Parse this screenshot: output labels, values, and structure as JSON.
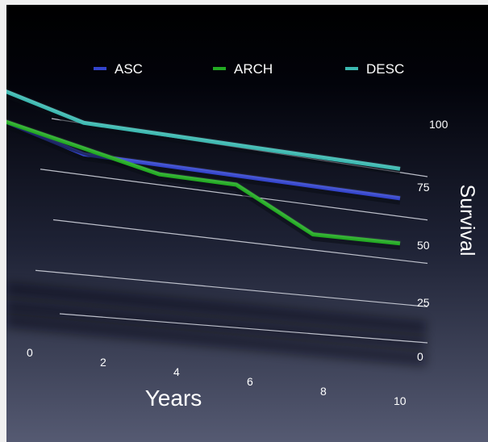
{
  "chart_data": {
    "type": "line",
    "title": "",
    "xlabel": "Years",
    "ylabel": "Survival",
    "xlim": [
      0,
      10
    ],
    "ylim": [
      0,
      100
    ],
    "x_ticks": [
      0,
      2,
      4,
      6,
      8,
      10
    ],
    "y_ticks": [
      0,
      25,
      50,
      75,
      100
    ],
    "legend_position": "top",
    "grid": true,
    "series": [
      {
        "name": "ASC",
        "color": "#3344cc",
        "x": [
          0,
          2,
          10
        ],
        "y": [
          93,
          82,
          81
        ]
      },
      {
        "name": "ARCH",
        "color": "#22aa22",
        "x": [
          0,
          2,
          4,
          6,
          8,
          10
        ],
        "y": [
          93,
          85,
          77,
          77,
          55,
          55
        ]
      },
      {
        "name": "DESC",
        "color": "#3bb8b0",
        "x": [
          0,
          2,
          10
        ],
        "y": [
          108,
          98,
          98
        ]
      }
    ]
  }
}
